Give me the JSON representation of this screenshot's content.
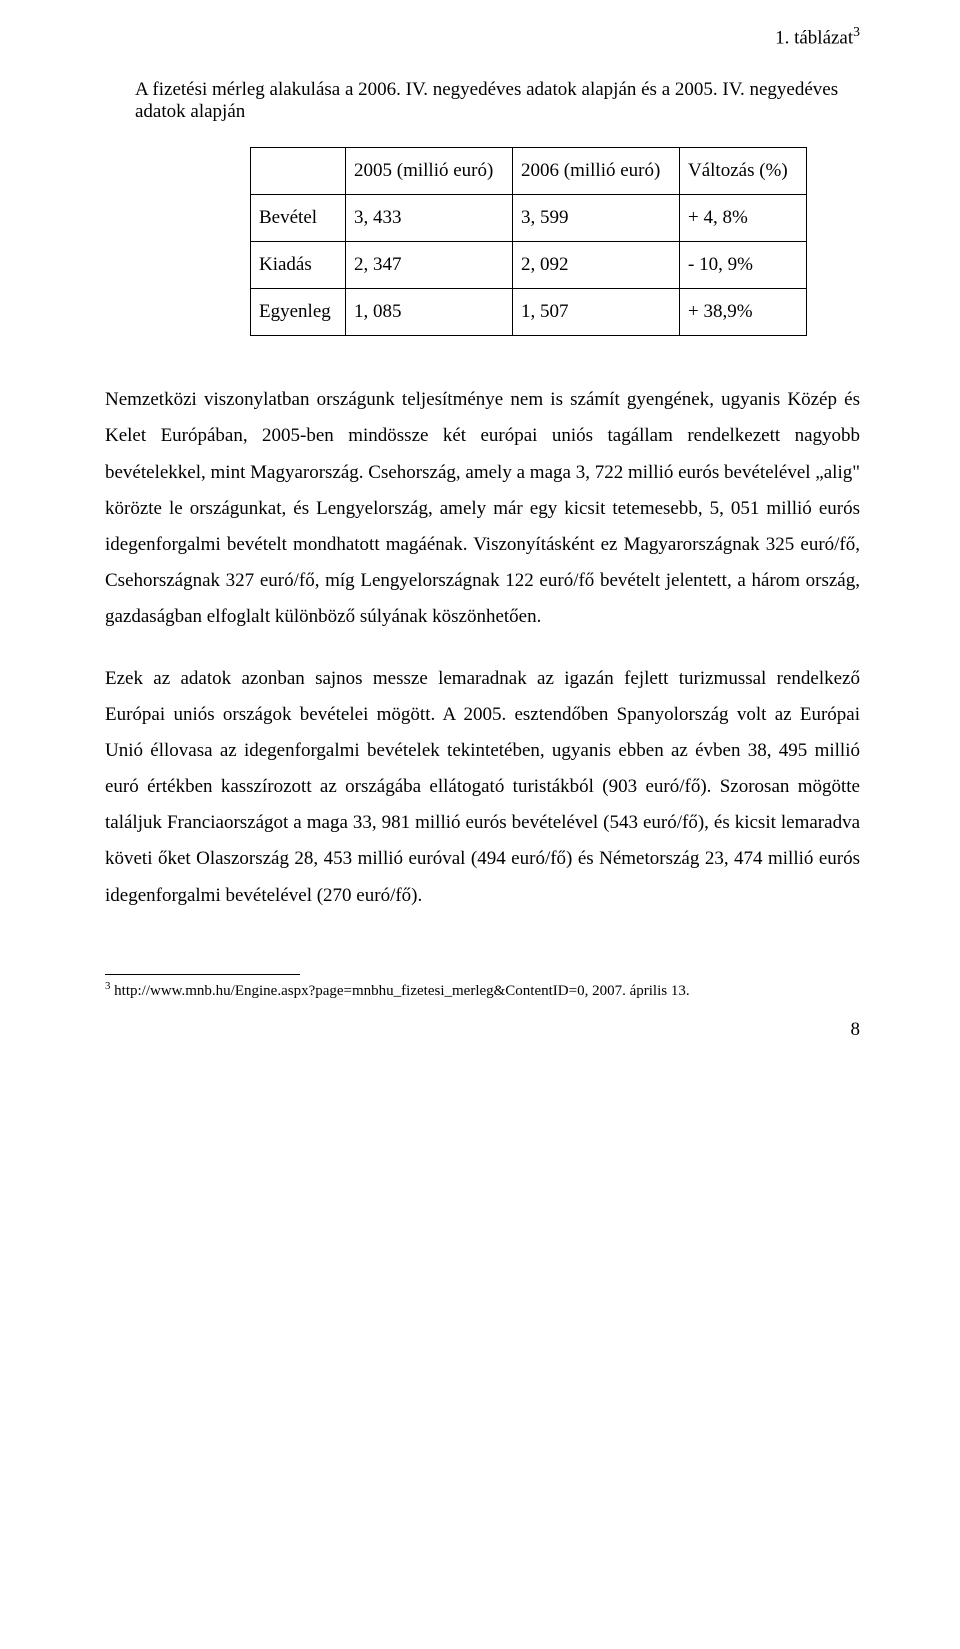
{
  "header": {
    "caption": "1. táblázat",
    "caption_sup": "3",
    "title": "A fizetési mérleg alakulása a 2006. IV. negyedéves adatok alapján és a 2005. IV. negyedéves adatok alapján"
  },
  "table": {
    "type": "table",
    "border_color": "#000000",
    "font_size_pt": 14,
    "columns": [
      "",
      "2005 (millió euró)",
      "2006 (millió euró)",
      "Változás (%)"
    ],
    "rows": [
      [
        "Bevétel",
        "3, 433",
        "3, 599",
        "+ 4, 8%"
      ],
      [
        "Kiadás",
        "2, 347",
        "2, 092",
        "- 10, 9%"
      ],
      [
        "Egyenleg",
        "1, 085",
        "1, 507",
        "+ 38,9%"
      ]
    ]
  },
  "paragraphs": {
    "p1": "Nemzetközi viszonylatban országunk teljesítménye nem is számít gyengének, ugyanis Közép és Kelet Európában, 2005-ben mindössze két európai uniós tagállam rendelkezett nagyobb bevételekkel, mint Magyarország. Csehország, amely a maga 3, 722 millió eurós bevételével „alig\" körözte le országunkat, és Lengyelország, amely már egy kicsit tetemesebb, 5, 051 millió eurós idegenforgalmi bevételt mondhatott magáénak. Viszonyításként ez Magyarországnak 325 euró/fő, Csehországnak 327 euró/fő, míg Lengyelországnak 122 euró/fő bevételt jelentett, a három ország, gazdaságban elfoglalt különböző súlyának köszönhetően.",
    "p2": "Ezek az adatok azonban sajnos messze lemaradnak az igazán fejlett turizmussal rendelkező Európai uniós országok bevételei mögött. A 2005. esztendőben Spanyolország volt az Európai Unió éllovasa az idegenforgalmi bevételek tekintetében, ugyanis ebben az évben 38, 495 millió euró értékben kasszírozott az országába ellátogató turistákból (903 euró/fő). Szorosan mögötte találjuk Franciaországot a maga 33, 981 millió eurós bevételével (543 euró/fő), és kicsit lemaradva követi őket Olaszország 28, 453 millió euróval (494 euró/fő) és Németország 23, 474 millió eurós idegenforgalmi bevételével (270 euró/fő)."
  },
  "footnote": {
    "marker": "3",
    "text": " http://www.mnb.hu/Engine.aspx?page=mnbhu_fizetesi_merleg&ContentID=0, 2007. április 13."
  },
  "page_number": "8",
  "colors": {
    "background": "#ffffff",
    "text": "#000000",
    "border": "#000000"
  }
}
